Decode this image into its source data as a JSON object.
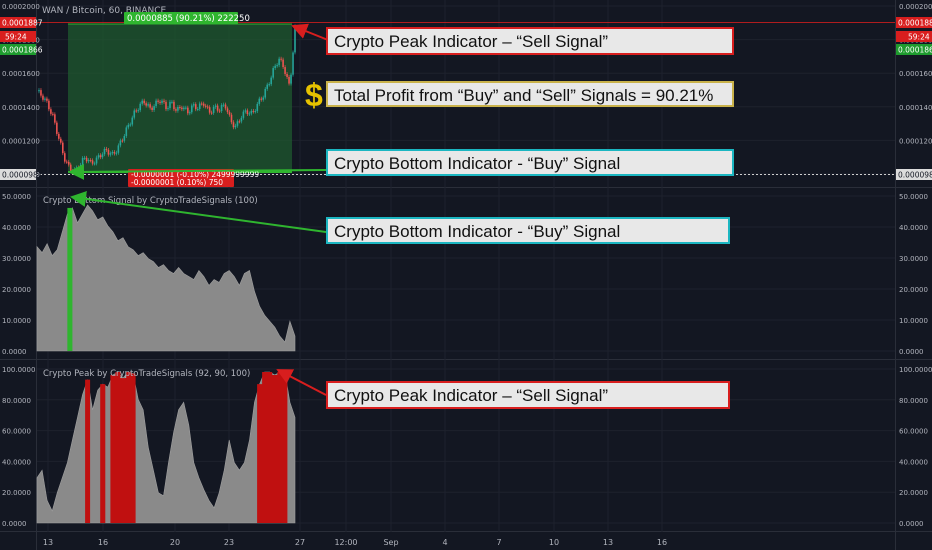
{
  "header": {
    "symbol_line": "WAN / Bitcoin, 60, BINANCE"
  },
  "trade_box": {
    "top_label": "0.0000885 (90.21%) 222250",
    "bottom_label_1": "-0.0000001 (-0.10%) 2499999999",
    "bottom_label_2": "-0.0000001 (0.10%) 750"
  },
  "left_tags": {
    "top_red": "0.0001887",
    "timer": "59:24",
    "green": "0.0001866",
    "bottom": "0.0000981"
  },
  "right_tags": {
    "top_red": "0.0001887",
    "timer": "59:24",
    "green": "0.0001866",
    "bottom": "0.0000981"
  },
  "callouts": {
    "peak_top": "Crypto Peak Indicator – “Sell Signal”",
    "profit": "Total Profit from “Buy” and “Sell” Signals = 90.21%",
    "bottom_top": "Crypto Bottom Indicator - “Buy” Signal",
    "bottom_mid": "Crypto Bottom Indicator - “Buy” Signal",
    "peak_low": "Crypto Peak Indicator – “Sell Signal”"
  },
  "icons": {
    "dollar": "$"
  },
  "colors": {
    "background": "#131722",
    "candle_up": "#26a69a",
    "candle_down": "#ef5350",
    "trade_fill": "#1f5a2f",
    "buy_signal": "#2fb52f",
    "sell_signal": "#c01010",
    "area_gray": "#8a8a8a",
    "arrow_red": "#d81e1e",
    "arrow_green": "#2fb52f"
  },
  "chart_data": [
    {
      "type": "line",
      "name": "price",
      "title": "WAN / Bitcoin, 60, BINANCE",
      "x_ticks": [
        "13",
        "16",
        "20",
        "23",
        "27",
        "12:00",
        "Sep",
        "4",
        "7",
        "10",
        "13",
        "16"
      ],
      "y_ticks": [
        "0.0002000",
        "0.0001800",
        "0.0001600",
        "0.0001400",
        "0.0001200",
        "0.0001000"
      ],
      "ylim": [
        9.75e-05,
        0.0002
      ],
      "values": [
        0.000148,
        0.000145,
        0.00014,
        0.000132,
        0.00012,
        0.000108,
        0.000101,
        9.9e-05,
        0.000103,
        0.000108,
        0.000104,
        0.000106,
        0.00011,
        0.000112,
        0.000109,
        0.000113,
        0.00012,
        0.000127,
        0.000134,
        0.000139,
        0.000142,
        0.000137,
        0.00014,
        0.000143,
        0.000138,
        0.000141,
        0.000136,
        0.000139,
        0.000135,
        0.000139,
        0.000138,
        0.000141,
        0.000135,
        0.000138,
        0.000137,
        0.00014,
        0.00013,
        0.000126,
        0.000133,
        0.000136,
        0.000134,
        0.00014,
        0.000145,
        0.000152,
        0.000161,
        0.000168,
        0.000162,
        0.00015,
        0.000186
      ]
    },
    {
      "type": "area",
      "name": "bottom",
      "title": "Crypto Bottom Signal by CryptoTradeSignals (100)",
      "y_ticks": [
        "50.0000",
        "40.0000",
        "30.0000",
        "20.0000",
        "10.0000",
        "0.0000"
      ],
      "ylim": [
        0,
        52
      ],
      "values": [
        35,
        33,
        36,
        32,
        34,
        40,
        46,
        48,
        43,
        46,
        49,
        47,
        44,
        45,
        42,
        40,
        37,
        38,
        35,
        34,
        32,
        33,
        31,
        30,
        28,
        29,
        27,
        26,
        28,
        26,
        25,
        24,
        27,
        25,
        22,
        24,
        23,
        26,
        27,
        25,
        22,
        26,
        27,
        20,
        15,
        12,
        10,
        8,
        5,
        3,
        10,
        5
      ],
      "buy_band": [
        6,
        7
      ]
    },
    {
      "type": "area",
      "name": "peak",
      "title": "Crypto Peak by CryptoTradeSignals (92, 90, 100)",
      "y_ticks": [
        "100.0000",
        "80.0000",
        "60.0000",
        "40.0000",
        "20.0000",
        "0.0000"
      ],
      "ylim": [
        0,
        102
      ],
      "values": [
        30,
        35,
        15,
        8,
        20,
        30,
        40,
        55,
        70,
        85,
        95,
        75,
        88,
        92,
        90,
        98,
        100,
        96,
        100,
        99,
        82,
        75,
        50,
        35,
        20,
        18,
        40,
        60,
        75,
        80,
        65,
        40,
        30,
        22,
        15,
        10,
        20,
        35,
        55,
        40,
        35,
        40,
        55,
        80,
        92,
        100,
        100,
        98,
        100,
        100,
        80,
        70
      ],
      "sell_threshold": 92
    }
  ]
}
